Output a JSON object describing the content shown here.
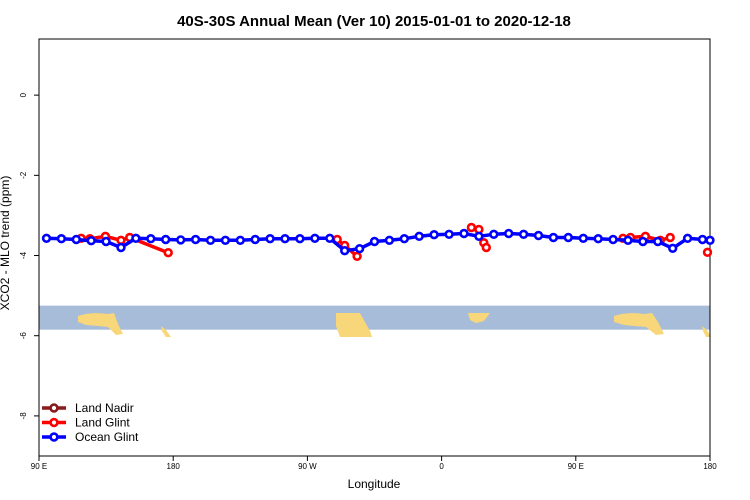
{
  "chart_data": {
    "type": "line",
    "title": "40S-30S Annual Mean (Ver 10)   2015-01-01 to 2020-12-18",
    "xlabel": "Longitude",
    "ylabel": "XCO2 - MLO trend (ppm)",
    "xlim": [
      0,
      270
    ],
    "ylim": [
      -9,
      1.4
    ],
    "x_ticks": [
      {
        "value": 0,
        "label": "90 E"
      },
      {
        "value": 54,
        "label": "180"
      },
      {
        "value": 108,
        "label": "90 W"
      },
      {
        "value": 162,
        "label": "0"
      },
      {
        "value": 216,
        "label": "90 E"
      },
      {
        "value": 270,
        "label": "180"
      }
    ],
    "y_ticks": [
      {
        "value": 0,
        "label": "0"
      },
      {
        "value": -2,
        "label": "-2"
      },
      {
        "value": -4,
        "label": "-4"
      },
      {
        "value": -6,
        "label": "-6"
      },
      {
        "value": -8,
        "label": "-8"
      }
    ],
    "map_strip": {
      "y_top": -5.25,
      "y_bottom": -5.85,
      "ocean_color": "#a7bcd9",
      "land_color": "#f7d77a"
    },
    "legend_position": "bottom-left",
    "series": [
      {
        "name": "Land Nadir",
        "color": "#8b1a1a",
        "segments": []
      },
      {
        "name": "Land Glint",
        "color": "#ff0000",
        "segments": [
          [
            [
              17,
              -3.57
            ],
            [
              20.5,
              -3.58
            ],
            [
              26.7,
              -3.52
            ],
            [
              33,
              -3.62
            ],
            [
              36.5,
              -3.55
            ],
            [
              52,
              -3.93
            ]
          ],
          [
            [
              120,
              -3.6
            ],
            [
              123,
              -3.75
            ],
            [
              128,
              -4.02
            ]
          ],
          [
            [
              174,
              -3.3
            ],
            [
              177,
              -3.35
            ]
          ],
          [
            [
              179,
              -3.68
            ],
            [
              180,
              -3.8
            ]
          ],
          [
            [
              235,
              -3.57
            ],
            [
              238,
              -3.55
            ],
            [
              244,
              -3.52
            ],
            [
              250,
              -3.62
            ],
            [
              254,
              -3.55
            ]
          ],
          [
            [
              269,
              -3.92
            ]
          ]
        ]
      },
      {
        "name": "Ocean Glint",
        "color": "#0000ff",
        "segments": [
          [
            [
              3,
              -3.57
            ],
            [
              9,
              -3.58
            ],
            [
              15,
              -3.6
            ],
            [
              21,
              -3.63
            ],
            [
              27,
              -3.65
            ],
            [
              33,
              -3.8
            ],
            [
              39,
              -3.57
            ],
            [
              45,
              -3.58
            ],
            [
              51,
              -3.6
            ],
            [
              57,
              -3.61
            ],
            [
              63,
              -3.6
            ],
            [
              69,
              -3.62
            ],
            [
              75,
              -3.62
            ],
            [
              81,
              -3.62
            ],
            [
              87,
              -3.6
            ],
            [
              93,
              -3.58
            ],
            [
              99,
              -3.58
            ],
            [
              105,
              -3.58
            ],
            [
              111,
              -3.57
            ],
            [
              117,
              -3.57
            ],
            [
              123,
              -3.88
            ],
            [
              129,
              -3.83
            ],
            [
              135,
              -3.65
            ],
            [
              141,
              -3.62
            ],
            [
              147,
              -3.58
            ],
            [
              153,
              -3.52
            ],
            [
              159,
              -3.48
            ],
            [
              165,
              -3.47
            ],
            [
              171,
              -3.45
            ],
            [
              177,
              -3.52
            ],
            [
              183,
              -3.47
            ],
            [
              189,
              -3.45
            ],
            [
              195,
              -3.47
            ],
            [
              201,
              -3.5
            ],
            [
              207,
              -3.55
            ],
            [
              213,
              -3.55
            ],
            [
              219,
              -3.57
            ],
            [
              225,
              -3.58
            ],
            [
              231,
              -3.6
            ],
            [
              237,
              -3.62
            ],
            [
              243,
              -3.65
            ],
            [
              249,
              -3.65
            ],
            [
              255,
              -3.82
            ],
            [
              261,
              -3.57
            ],
            [
              267,
              -3.6
            ],
            [
              270,
              -3.62
            ]
          ]
        ]
      }
    ]
  }
}
